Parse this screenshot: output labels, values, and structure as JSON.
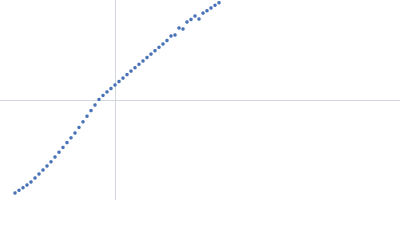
{
  "chart_data": {
    "type": "scatter",
    "color": "#4a72b8",
    "x": [
      15,
      19,
      23,
      27,
      31,
      35,
      39,
      43,
      47,
      51,
      55,
      59,
      63,
      67,
      71,
      75,
      79,
      83,
      87,
      91,
      95,
      99,
      103,
      107,
      111,
      115,
      119,
      123,
      127,
      131,
      135,
      139,
      143,
      147,
      151,
      155,
      159,
      163,
      167,
      171,
      175,
      179,
      183,
      187,
      191,
      195,
      199,
      203,
      207,
      211,
      215,
      219
    ],
    "values": [
      7,
      9.7,
      12.3,
      15,
      18,
      22,
      26,
      30,
      34,
      38.2,
      43,
      47.8,
      52.6,
      57.4,
      62.2,
      67,
      72.6,
      78.2,
      83.8,
      89.4,
      95,
      100.6,
      104.6,
      108.1,
      111.5,
      115,
      118.5,
      121.9,
      125.4,
      128.9,
      132.3,
      135.7,
      139,
      142.5,
      145.9,
      149.3,
      152.7,
      156,
      159.5,
      164,
      165,
      172,
      171,
      178,
      180.5,
      184,
      181,
      186.9,
      189.3,
      192,
      194.7,
      197.3
    ],
    "xlim": [
      0,
      400
    ],
    "ylim": [
      0,
      200
    ],
    "xticks": [
      115
    ],
    "yticks": [
      100
    ],
    "grid": true,
    "tick_labels": false,
    "grid_color": "#d3d8de"
  }
}
